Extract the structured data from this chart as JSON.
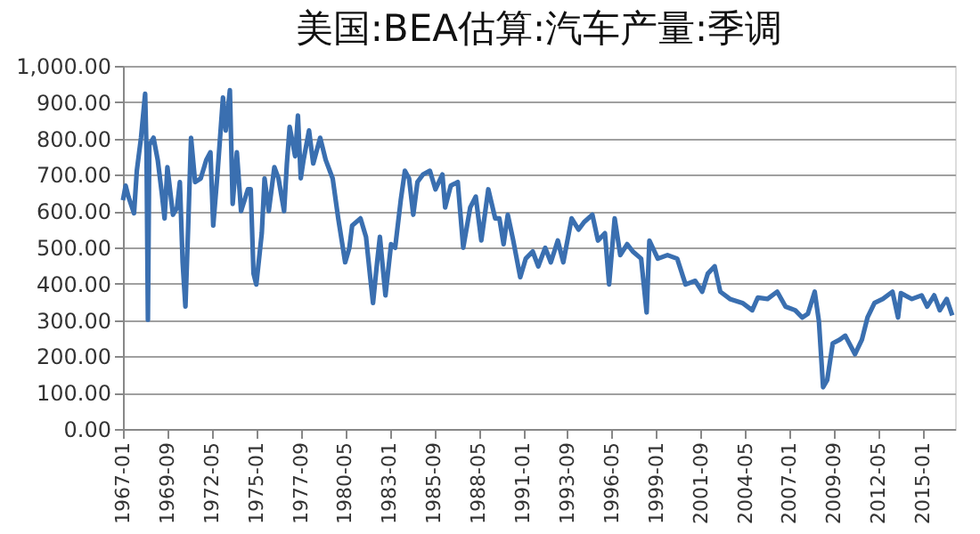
{
  "chart_data": {
    "type": "line",
    "title": "美国:BEA估算:汽车产量:季调",
    "x": [
      "1967-01",
      "1967-03",
      "1967-05",
      "1967-09",
      "1967-11",
      "1968-02",
      "1968-05",
      "1968-06",
      "1968-07",
      "1968-08",
      "1968-11",
      "1969-02",
      "1969-05",
      "1969-07",
      "1969-09",
      "1970-01",
      "1970-04",
      "1970-06",
      "1970-08",
      "1970-10",
      "1970-12",
      "1971-02",
      "1971-05",
      "1971-09",
      "1972-01",
      "1972-04",
      "1972-06",
      "1972-09",
      "1973-01",
      "1973-03",
      "1973-06",
      "1973-08",
      "1973-11",
      "1974-02",
      "1974-07",
      "1974-09",
      "1974-11",
      "1975-01",
      "1975-05",
      "1975-07",
      "1975-10",
      "1976-02",
      "1976-05",
      "1976-09",
      "1976-11",
      "1977-01",
      "1977-05",
      "1977-07",
      "1977-09",
      "1977-11",
      "1978-03",
      "1978-06",
      "1978-11",
      "1979-03",
      "1979-08",
      "1979-12",
      "1980-05",
      "1980-08",
      "1980-10",
      "1981-04",
      "1981-08",
      "1981-11",
      "1982-01",
      "1982-04",
      "1982-06",
      "1982-10",
      "1983-02",
      "1983-05",
      "1983-09",
      "1983-12",
      "1984-03",
      "1984-06",
      "1984-09",
      "1985-01",
      "1985-06",
      "1985-10",
      "1986-03",
      "1986-05",
      "1986-09",
      "1987-02",
      "1987-06",
      "1987-11",
      "1988-03",
      "1988-07",
      "1988-12",
      "1989-05",
      "1989-08",
      "1989-11",
      "1990-02",
      "1990-06",
      "1990-11",
      "1991-03",
      "1991-08",
      "1991-12",
      "1992-05",
      "1992-09",
      "1993-02",
      "1993-06",
      "1993-12",
      "1994-05",
      "1994-09",
      "1995-03",
      "1995-07",
      "1995-12",
      "1996-03",
      "1996-07",
      "1996-11",
      "1997-04",
      "1997-08",
      "1998-02",
      "1998-06",
      "1998-08",
      "1999-02",
      "1999-09",
      "2000-04",
      "2000-10",
      "2001-05",
      "2001-10",
      "2002-02",
      "2002-07",
      "2002-11",
      "2003-06",
      "2004-03",
      "2004-10",
      "2005-02",
      "2005-09",
      "2006-04",
      "2006-10",
      "2007-05",
      "2007-10",
      "2008-02",
      "2008-07",
      "2008-10",
      "2009-01",
      "2009-04",
      "2009-08",
      "2010-01",
      "2010-05",
      "2010-12",
      "2011-05",
      "2011-09",
      "2012-02",
      "2012-08",
      "2013-03",
      "2013-07",
      "2013-09",
      "2014-05",
      "2014-12",
      "2015-04",
      "2015-09",
      "2016-01",
      "2016-06",
      "2016-10"
    ],
    "series": [
      {
        "color": "#3a6fb0",
        "values": [
          630,
          670,
          640,
          594,
          711,
          802,
          923,
          762,
          301,
          782,
          802,
          741,
          650,
          580,
          721,
          590,
          610,
          680,
          459,
          337,
          560,
          802,
          680,
          690,
          741,
          762,
          560,
          701,
          913,
          822,
          933,
          620,
          762,
          600,
          660,
          660,
          428,
          398,
          539,
          690,
          600,
          721,
          690,
          600,
          731,
          832,
          751,
          863,
          690,
          741,
          822,
          731,
          802,
          741,
          690,
          580,
          459,
          499,
          560,
          580,
          529,
          418,
          347,
          459,
          529,
          368,
          509,
          499,
          630,
          711,
          690,
          590,
          680,
          701,
          711,
          660,
          701,
          610,
          670,
          680,
          499,
          610,
          640,
          519,
          660,
          580,
          580,
          509,
          590,
          519,
          418,
          469,
          489,
          448,
          499,
          459,
          519,
          459,
          580,
          549,
          570,
          590,
          519,
          539,
          398,
          580,
          479,
          509,
          489,
          469,
          321,
          519,
          469,
          479,
          469,
          398,
          408,
          378,
          428,
          448,
          378,
          358,
          347,
          327,
          362,
          358,
          378,
          337,
          327,
          307,
          317,
          378,
          297,
          115,
          135,
          236,
          246,
          257,
          206,
          246,
          307,
          347,
          358,
          378,
          307,
          374,
          358,
          368,
          337,
          368,
          327,
          358,
          313
        ]
      }
    ],
    "xlim": [
      "1967-01",
      "2016-12"
    ],
    "xticks": [
      "1967-01",
      "1969-09",
      "1972-05",
      "1975-01",
      "1977-09",
      "1980-05",
      "1983-01",
      "1985-09",
      "1988-05",
      "1991-01",
      "1993-09",
      "1996-05",
      "1999-01",
      "2001-09",
      "2004-05",
      "2007-01",
      "2009-09",
      "2012-05",
      "2015-01"
    ],
    "ylim": [
      0,
      1000
    ],
    "yticks": [
      {
        "value": 0,
        "label": "0.00"
      },
      {
        "value": 100,
        "label": "100.00"
      },
      {
        "value": 200,
        "label": "200.00"
      },
      {
        "value": 300,
        "label": "300.00"
      },
      {
        "value": 400,
        "label": "400.00"
      },
      {
        "value": 500,
        "label": "500.00"
      },
      {
        "value": 600,
        "label": "600.00"
      },
      {
        "value": 700,
        "label": "700.00"
      },
      {
        "value": 800,
        "label": "800.00"
      },
      {
        "value": 900,
        "label": "900.00"
      },
      {
        "value": 1000,
        "label": "1,000.00"
      }
    ],
    "grid": "y",
    "marker": "none",
    "line_style": "solid"
  }
}
